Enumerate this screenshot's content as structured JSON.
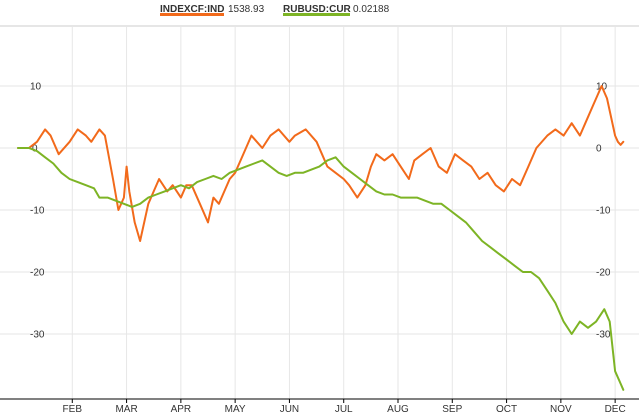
{
  "chart_data": {
    "type": "line",
    "title": "",
    "xlabel": "",
    "ylabel": "",
    "ylim": [
      -38,
      12
    ],
    "xlim": [
      0,
      11.2
    ],
    "yticks": [
      10,
      0,
      -10,
      -20,
      -30
    ],
    "month_labels": [
      "FEB",
      "MAR",
      "APR",
      "MAY",
      "JUN",
      "JUL",
      "AUG",
      "SEP",
      "OCT",
      "NOV",
      "DEC"
    ],
    "grid": true,
    "legend_position": "top-center",
    "series": [
      {
        "name": "INDEXCF:IND",
        "value_label": "1538.93",
        "color": "#f26a1b",
        "x": [
          0.0,
          0.2,
          0.35,
          0.5,
          0.6,
          0.75,
          0.95,
          1.1,
          1.25,
          1.35,
          1.5,
          1.6,
          1.75,
          1.85,
          1.95,
          2.0,
          2.05,
          2.15,
          2.25,
          2.4,
          2.5,
          2.6,
          2.75,
          2.85,
          3.0,
          3.1,
          3.2,
          3.35,
          3.5,
          3.6,
          3.7,
          3.8,
          3.9,
          4.0,
          4.1,
          4.2,
          4.3,
          4.5,
          4.65,
          4.8,
          5.0,
          5.1,
          5.3,
          5.5,
          5.6,
          5.7,
          5.85,
          6.0,
          6.1,
          6.25,
          6.4,
          6.5,
          6.6,
          6.75,
          6.9,
          7.05,
          7.2,
          7.3,
          7.45,
          7.6,
          7.75,
          7.9,
          8.05,
          8.2,
          8.35,
          8.5,
          8.65,
          8.8,
          8.95,
          9.1,
          9.25,
          9.4,
          9.55,
          9.75,
          9.9,
          10.05,
          10.2,
          10.35,
          10.45,
          10.6,
          10.75,
          10.85,
          11.0,
          11.05,
          11.1,
          11.15
        ],
        "y": [
          0,
          0,
          1,
          3,
          2,
          -1,
          1,
          3,
          2,
          1,
          3,
          2,
          -5,
          -10,
          -8,
          -3,
          -7,
          -12,
          -15,
          -9,
          -7,
          -5,
          -7,
          -6,
          -8,
          -6,
          -6,
          -9,
          -12,
          -8,
          -9,
          -7,
          -5,
          -4,
          -2,
          0,
          2,
          0,
          2,
          3,
          1,
          2,
          3,
          1,
          -1,
          -3,
          -4,
          -5,
          -6,
          -8,
          -6,
          -3,
          -1,
          -2,
          -1,
          -3,
          -5,
          -2,
          -1,
          0,
          -3,
          -4,
          -1,
          -2,
          -3,
          -5,
          -4,
          -6,
          -7,
          -5,
          -6,
          -3,
          0,
          2,
          3,
          2,
          4,
          2,
          4,
          7,
          10,
          8,
          2,
          1,
          0.5,
          1
        ]
      },
      {
        "name": "RUBUSD:CUR",
        "value_label": "0.02188",
        "color": "#7db425",
        "x": [
          0.0,
          0.2,
          0.35,
          0.5,
          0.65,
          0.8,
          0.95,
          1.1,
          1.25,
          1.4,
          1.5,
          1.65,
          1.8,
          1.95,
          2.1,
          2.25,
          2.4,
          2.55,
          2.7,
          2.85,
          3.0,
          3.15,
          3.3,
          3.45,
          3.6,
          3.75,
          3.9,
          4.05,
          4.2,
          4.35,
          4.5,
          4.65,
          4.8,
          4.95,
          5.1,
          5.25,
          5.4,
          5.55,
          5.7,
          5.85,
          6.0,
          6.15,
          6.3,
          6.45,
          6.6,
          6.75,
          6.9,
          7.05,
          7.2,
          7.35,
          7.5,
          7.65,
          7.8,
          7.95,
          8.1,
          8.25,
          8.4,
          8.55,
          8.7,
          8.85,
          9.0,
          9.15,
          9.3,
          9.45,
          9.6,
          9.75,
          9.9,
          10.05,
          10.2,
          10.35,
          10.5,
          10.65,
          10.8,
          10.9,
          11.0,
          11.1,
          11.15
        ],
        "y": [
          0,
          0,
          -0.5,
          -1.5,
          -2.5,
          -4,
          -5,
          -5.5,
          -6,
          -6.5,
          -8,
          -8,
          -8.5,
          -9,
          -9.5,
          -9,
          -8,
          -7.5,
          -7,
          -6.5,
          -6,
          -6.5,
          -5.5,
          -5,
          -4.5,
          -5,
          -4,
          -3.5,
          -3,
          -2.5,
          -2,
          -3,
          -4,
          -4.5,
          -4,
          -4,
          -3.5,
          -3,
          -2,
          -1.5,
          -3,
          -4,
          -5,
          -6,
          -7,
          -7.5,
          -7.5,
          -8,
          -8,
          -8,
          -8.5,
          -9,
          -9,
          -10,
          -11,
          -12,
          -13.5,
          -15,
          -16,
          -17,
          -18,
          -19,
          -20,
          -20,
          -21,
          -23,
          -25,
          -28,
          -30,
          -28,
          -29,
          -28,
          -26,
          -28,
          -36,
          -38,
          -39
        ]
      }
    ]
  }
}
